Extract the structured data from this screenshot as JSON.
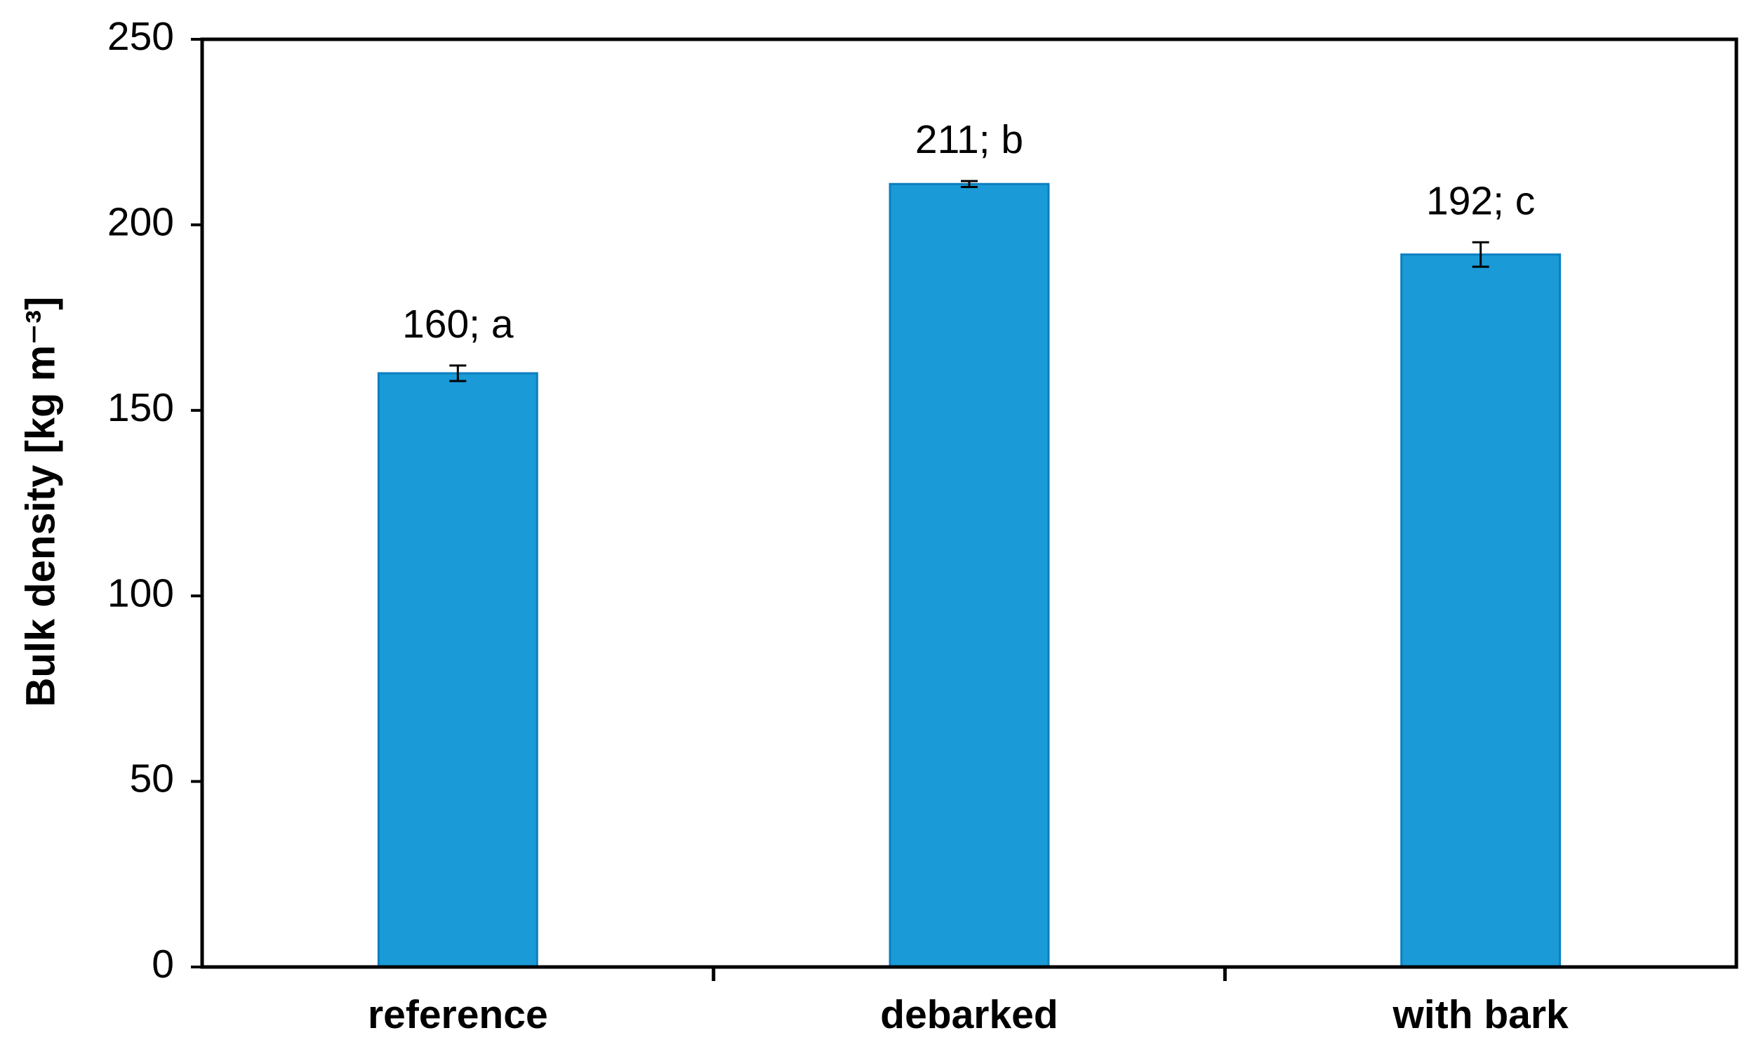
{
  "chart_data": {
    "type": "bar",
    "y_label": "Bulk density [kg m⁻³]",
    "categories": [
      "reference",
      "debarked",
      "with bark"
    ],
    "values": [
      160,
      211,
      192
    ],
    "value_labels": [
      "160; a",
      "211; b",
      "192; c"
    ],
    "errors": [
      2.1,
      0.8,
      3.3
    ],
    "color": "#1a9ad6",
    "ylim": [
      0,
      250
    ],
    "yticks": [
      0,
      50,
      100,
      150,
      200,
      250
    ]
  }
}
